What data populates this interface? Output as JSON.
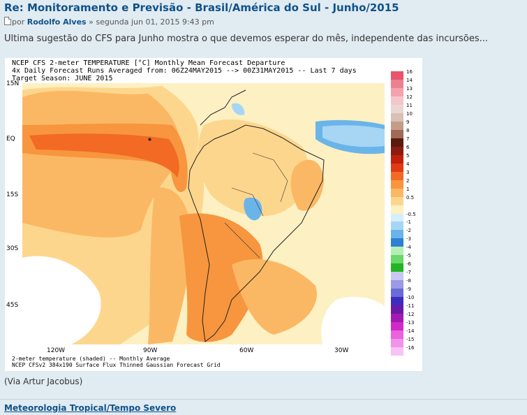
{
  "post": {
    "title": "Re: Monitoramento e Previsão - Brasil/América do Sul - Junho/2015",
    "by_prefix": "por ",
    "author": "Rodolfo Alves",
    "date": " » segunda jun 01, 2015 9:43 pm",
    "text": "Ultima sugestão do CFS para Junho mostra o que devemos esperar do mês, independente das incursões...",
    "via": "(Via Artur Jacobus)"
  },
  "figure": {
    "header_line1": "NCEP CFS 2-meter TEMPERATURE [°C] Monthly Mean Forecast Departure",
    "header_line2": "4x Daily Forecast Runs Averaged from: 06Z24MAY2015 --> 00Z31MAY2015 -- Last 7 days",
    "header_line3": "Target Season: JUNE 2015",
    "footer_line1": "2-meter temperature (shaded) -- Monthly Average",
    "footer_line2": "NCEP CFSv2 384x190 Surface Flux Thinned Gaussian Forecast Grid",
    "lat_labels": [
      "15N",
      "EQ",
      "15S",
      "30S",
      "45S"
    ],
    "lon_labels": [
      "120W",
      "90W",
      "60W",
      "30W"
    ],
    "colorbar": [
      {
        "label": "16",
        "color": "#e8546c"
      },
      {
        "label": "14",
        "color": "#ee7f8f"
      },
      {
        "label": "13",
        "color": "#f2a3ad"
      },
      {
        "label": "12",
        "color": "#f6c5cb"
      },
      {
        "label": "11",
        "color": "#e8d6d2"
      },
      {
        "label": "10",
        "color": "#d8c0b4"
      },
      {
        "label": "9",
        "color": "#c49c8a"
      },
      {
        "label": "8",
        "color": "#a06a56"
      },
      {
        "label": "7",
        "color": "#5a1a0e"
      },
      {
        "label": "6",
        "color": "#8a1c10"
      },
      {
        "label": "5",
        "color": "#c0200c"
      },
      {
        "label": "4",
        "color": "#e23a12"
      },
      {
        "label": "3",
        "color": "#f26a24"
      },
      {
        "label": "2",
        "color": "#f7963e"
      },
      {
        "label": "1",
        "color": "#fbb864"
      },
      {
        "label": "0.5",
        "color": "#fdd68e"
      },
      {
        "label": "",
        "color": "#fdf0c2"
      },
      {
        "label": "-0.5",
        "color": "#d6eefa"
      },
      {
        "label": "-1",
        "color": "#a6d6f4"
      },
      {
        "label": "-2",
        "color": "#6ab4ea"
      },
      {
        "label": "-3",
        "color": "#2c7fd2"
      },
      {
        "label": "-4",
        "color": "#b4f0b4"
      },
      {
        "label": "-5",
        "color": "#6ad86a"
      },
      {
        "label": "-6",
        "color": "#24b424"
      },
      {
        "label": "-7",
        "color": "#c8c8f2"
      },
      {
        "label": "-8",
        "color": "#9a9ae6"
      },
      {
        "label": "-9",
        "color": "#6a6ad8"
      },
      {
        "label": "-10",
        "color": "#3c2cc0"
      },
      {
        "label": "-11",
        "color": "#6a1aa6"
      },
      {
        "label": "-12",
        "color": "#a21ab4"
      },
      {
        "label": "-13",
        "color": "#d22ac8"
      },
      {
        "label": "-14",
        "color": "#ea62de"
      },
      {
        "label": "-15",
        "color": "#f292ea"
      },
      {
        "label": "-16",
        "color": "#f8c2f4"
      }
    ]
  },
  "footer": {
    "forum_link": "Meteorologia Tropical/Tempo Severo"
  }
}
